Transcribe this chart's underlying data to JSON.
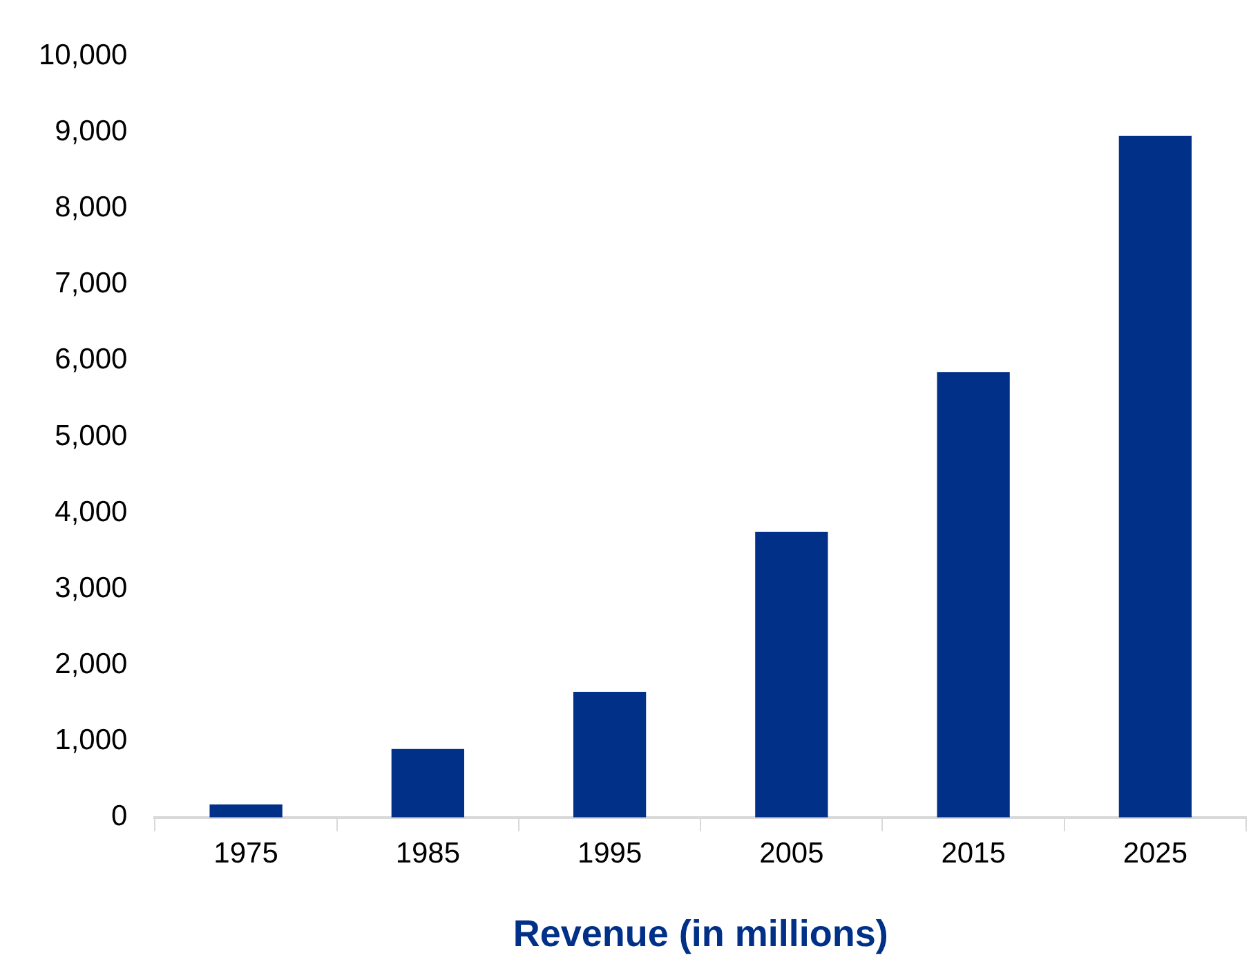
{
  "chart_data": {
    "type": "bar",
    "xlabel": "Revenue (in millions)",
    "categories": [
      "1975",
      "1985",
      "1995",
      "2005",
      "2015",
      "2025"
    ],
    "values": [
      170,
      900,
      1650,
      3750,
      5850,
      8950
    ],
    "color": "#003087",
    "ylim": [
      0,
      10000
    ],
    "yticks": [
      0,
      {
        "value": 1000,
        "label": "1,000"
      },
      {
        "value": 2000,
        "label": "2,000"
      },
      {
        "value": 3000,
        "label": "3,000"
      },
      {
        "value": 4000,
        "label": "4,000"
      },
      {
        "value": 5000,
        "label": "5,000"
      },
      {
        "value": 6000,
        "label": "6,000"
      },
      {
        "value": 7000,
        "label": "7,000"
      },
      {
        "value": 8000,
        "label": "8,000"
      },
      {
        "value": 9000,
        "label": "9,000"
      },
      {
        "value": 10000,
        "label": "10,000"
      }
    ],
    "grid": false,
    "legend": false
  }
}
